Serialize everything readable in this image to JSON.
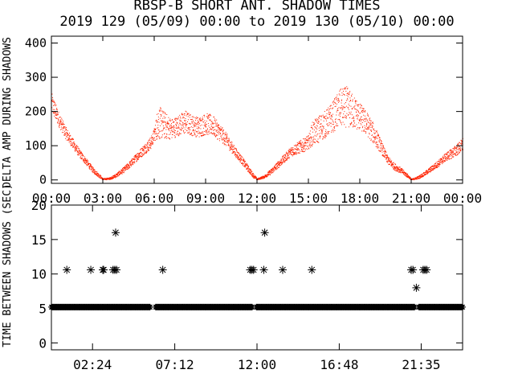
{
  "figure": {
    "title": "RBSP-B SHORT ANT. SHADOW TIMES",
    "subtitle": "2019 129 (05/09) 00:00 to 2019 130 (05/10) 00:00"
  },
  "chart_data": [
    {
      "type": "scatter",
      "ylabel": "DELTA AMP DURING SHADOWS",
      "x_unit": "hours",
      "xlim": [
        0,
        24
      ],
      "ylim": [
        -10,
        420
      ],
      "xtick_values": [
        0,
        3,
        6,
        9,
        12,
        15,
        18,
        21,
        24
      ],
      "xtick_labels": [
        "00:00",
        "03:00",
        "06:00",
        "09:00",
        "12:00",
        "15:00",
        "18:00",
        "21:00",
        "00:00"
      ],
      "ytick_values": [
        0,
        100,
        200,
        300,
        400
      ],
      "ytick_labels": [
        "0",
        "100",
        "200",
        "300",
        "400"
      ],
      "marker_color": "#ff2200",
      "grid": false,
      "envelope": {
        "x": [
          0.0,
          0.4,
          0.8,
          1.2,
          1.6,
          2.0,
          2.4,
          2.8,
          3.0,
          3.4,
          3.8,
          4.2,
          4.6,
          5.0,
          5.4,
          5.8,
          6.0,
          6.2,
          6.6,
          7.0,
          7.4,
          7.8,
          8.2,
          8.6,
          9.0,
          9.4,
          9.8,
          10.2,
          10.6,
          11.0,
          11.4,
          11.8,
          12.0,
          12.4,
          12.8,
          13.2,
          13.6,
          14.0,
          14.4,
          14.8,
          15.0,
          15.2,
          15.6,
          16.0,
          16.4,
          16.8,
          17.2,
          17.6,
          18.0,
          18.4,
          18.8,
          19.2,
          19.6,
          20.0,
          20.4,
          20.8,
          21.0,
          21.4,
          21.8,
          22.2,
          22.6,
          23.0,
          23.4,
          23.8,
          24.0
        ],
        "y": [
          225,
          180,
          140,
          110,
          80,
          55,
          30,
          12,
          3,
          5,
          15,
          30,
          48,
          70,
          90,
          110,
          135,
          170,
          160,
          150,
          160,
          170,
          160,
          155,
          165,
          160,
          140,
          118,
          90,
          65,
          38,
          12,
          3,
          10,
          25,
          45,
          65,
          85,
          95,
          105,
          112,
          135,
          150,
          165,
          185,
          210,
          215,
          200,
          185,
          165,
          135,
          100,
          60,
          40,
          28,
          12,
          2,
          8,
          20,
          35,
          50,
          68,
          80,
          95,
          105
        ],
        "spread": [
          30,
          22,
          18,
          15,
          12,
          10,
          8,
          5,
          2,
          3,
          6,
          8,
          10,
          12,
          15,
          18,
          20,
          50,
          40,
          30,
          30,
          35,
          30,
          30,
          32,
          30,
          25,
          20,
          15,
          12,
          10,
          6,
          2,
          4,
          8,
          10,
          12,
          15,
          18,
          20,
          20,
          35,
          40,
          40,
          45,
          55,
          60,
          50,
          40,
          35,
          30,
          20,
          12,
          10,
          8,
          5,
          2,
          4,
          6,
          8,
          10,
          12,
          15,
          18,
          20
        ]
      }
    },
    {
      "type": "scatter",
      "ylabel": "TIME BETWEEN SHADOWS (SEC)",
      "x_unit": "hours",
      "xlim": [
        0,
        24
      ],
      "ylim": [
        -1,
        20
      ],
      "xtick_values": [
        2.4,
        7.2,
        12.0,
        16.8,
        21.583
      ],
      "xtick_labels": [
        "02:24",
        "07:12",
        "12:00",
        "16:48",
        "21:35"
      ],
      "ytick_values": [
        0,
        5,
        10,
        15,
        20
      ],
      "ytick_labels": [
        "0",
        "5",
        "10",
        "15",
        "20"
      ],
      "marker": "asterisk",
      "marker_color": "#000000",
      "grid": false,
      "baseline": {
        "y": 5.2,
        "x_from": 0.0,
        "x_to": 24.0
      },
      "baseline_gaps": [
        [
          5.8,
          6.05
        ],
        [
          11.75,
          11.95
        ],
        [
          21.2,
          21.4
        ]
      ],
      "points": [
        {
          "x": 0.9,
          "y": 10.6
        },
        {
          "x": 2.3,
          "y": 10.6
        },
        {
          "x": 3.0,
          "y": 10.6
        },
        {
          "x": 3.05,
          "y": 10.6
        },
        {
          "x": 3.6,
          "y": 10.6
        },
        {
          "x": 3.7,
          "y": 10.6
        },
        {
          "x": 3.8,
          "y": 10.6
        },
        {
          "x": 3.75,
          "y": 16.0
        },
        {
          "x": 6.5,
          "y": 10.6
        },
        {
          "x": 11.6,
          "y": 10.6
        },
        {
          "x": 11.7,
          "y": 10.6
        },
        {
          "x": 11.8,
          "y": 10.6
        },
        {
          "x": 12.4,
          "y": 10.6
        },
        {
          "x": 12.45,
          "y": 16.0
        },
        {
          "x": 13.5,
          "y": 10.6
        },
        {
          "x": 15.2,
          "y": 10.6
        },
        {
          "x": 21.0,
          "y": 10.6
        },
        {
          "x": 21.1,
          "y": 10.6
        },
        {
          "x": 21.3,
          "y": 8.0
        },
        {
          "x": 21.7,
          "y": 10.6
        },
        {
          "x": 21.8,
          "y": 10.6
        },
        {
          "x": 21.9,
          "y": 10.6
        }
      ]
    }
  ]
}
